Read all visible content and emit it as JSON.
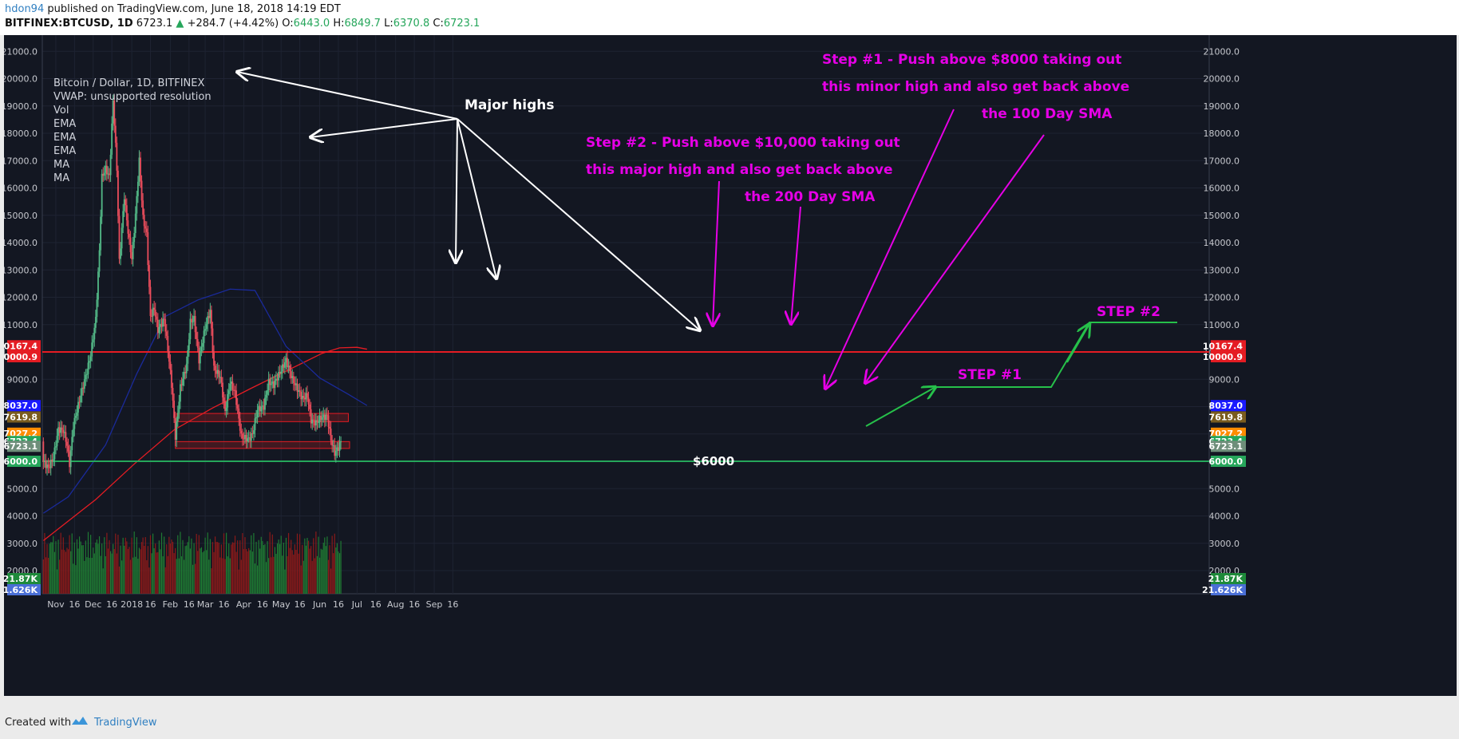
{
  "header": {
    "author": "hdon94",
    "published": "published on TradingView.com, June 18, 2018 14:19 EDT",
    "symbol": "BITFINEX:BTCUSD, 1D",
    "last": "6723.1",
    "change": "+284.7 (+4.42%)",
    "o_label": "O:",
    "o": "6443.0",
    "h_label": "H:",
    "h": "6849.7",
    "l_label": "L:",
    "l": "6370.8",
    "c_label": "C:",
    "c": "6723.1"
  },
  "legend": {
    "title": "Bitcoin / Dollar, 1D, BITFINEX",
    "vwap": "VWAP: unsupported resolution",
    "items": [
      "Vol",
      "EMA",
      "EMA",
      "EMA",
      "MA",
      "MA"
    ]
  },
  "chart_data": {
    "type": "candlestick",
    "title": "Bitcoin / Dollar, 1D, BITFINEX",
    "price_axis": {
      "ticks": [
        "21000.0",
        "20000.0",
        "19000.0",
        "18000.0",
        "17000.0",
        "16000.0",
        "15000.0",
        "14000.0",
        "13000.0",
        "12000.0",
        "11000.0",
        "10000.0",
        "9000.0",
        "8000.0",
        "7000.0",
        "6000.0",
        "5000.0",
        "4000.0",
        "3000.0",
        "2000.0"
      ],
      "ylim": [
        1000,
        21000
      ]
    },
    "time_axis": {
      "ticks": [
        "Nov",
        "16",
        "Dec",
        "16",
        "2018",
        "16",
        "Feb",
        "16",
        "Mar",
        "16",
        "Apr",
        "16",
        "May",
        "16",
        "Jun",
        "16",
        "Jul",
        "16",
        "Aug",
        "16",
        "Sep",
        "16"
      ]
    },
    "price_labels": [
      {
        "text": "10167.4",
        "color": "#e51c23"
      },
      {
        "text": "10000.9",
        "color": "#e51c23"
      },
      {
        "text": "8037.0",
        "color": "#1a1aff"
      },
      {
        "text": "7619.8",
        "color": "#7a5c1e"
      },
      {
        "text": "7027.2",
        "color": "#ff8c00"
      },
      {
        "text": "6723.4",
        "color": "#26a65b"
      },
      {
        "text": "6723.1",
        "color": "#6e8e7a"
      },
      {
        "text": "6000.0",
        "color": "#26a65b"
      },
      {
        "text": "21.87K",
        "color": "#1e8a3a"
      },
      {
        "text": "21.626K",
        "color": "#4a6fd6"
      }
    ],
    "horizontal_lines": [
      {
        "price": 10000.9,
        "color": "#e51c23"
      },
      {
        "price": 6000.0,
        "color": "#26a65b"
      }
    ],
    "zones": [
      {
        "from_date": "2018-02-06",
        "to_date": "2018-06-24",
        "low": 7450,
        "high": 7750
      },
      {
        "from_date": "2018-02-05",
        "to_date": "2018-06-25",
        "low": 6470,
        "high": 6720
      }
    ],
    "close_series": [
      {
        "date": "2017-10-22",
        "close": 5980
      },
      {
        "date": "2017-10-26",
        "close": 5760
      },
      {
        "date": "2017-10-30",
        "close": 6130
      },
      {
        "date": "2017-11-03",
        "close": 7170
      },
      {
        "date": "2017-11-07",
        "close": 7130
      },
      {
        "date": "2017-11-10",
        "close": 6600
      },
      {
        "date": "2017-11-12",
        "close": 5900
      },
      {
        "date": "2017-11-15",
        "close": 7300
      },
      {
        "date": "2017-11-20",
        "close": 8240
      },
      {
        "date": "2017-11-26",
        "close": 9300
      },
      {
        "date": "2017-11-29",
        "close": 9900
      },
      {
        "date": "2017-12-03",
        "close": 11200
      },
      {
        "date": "2017-12-06",
        "close": 13700
      },
      {
        "date": "2017-12-08",
        "close": 16400
      },
      {
        "date": "2017-12-11",
        "close": 16700
      },
      {
        "date": "2017-12-14",
        "close": 16400
      },
      {
        "date": "2017-12-17",
        "close": 19200
      },
      {
        "date": "2017-12-20",
        "close": 16700
      },
      {
        "date": "2017-12-22",
        "close": 13300
      },
      {
        "date": "2017-12-26",
        "close": 15700
      },
      {
        "date": "2017-12-29",
        "close": 14400
      },
      {
        "date": "2018-01-01",
        "close": 13400
      },
      {
        "date": "2018-01-04",
        "close": 15000
      },
      {
        "date": "2018-01-07",
        "close": 17000
      },
      {
        "date": "2018-01-10",
        "close": 14900
      },
      {
        "date": "2018-01-13",
        "close": 14300
      },
      {
        "date": "2018-01-16",
        "close": 11300
      },
      {
        "date": "2018-01-19",
        "close": 11600
      },
      {
        "date": "2018-01-22",
        "close": 10800
      },
      {
        "date": "2018-01-27",
        "close": 11200
      },
      {
        "date": "2018-01-30",
        "close": 10100
      },
      {
        "date": "2018-02-02",
        "close": 8800
      },
      {
        "date": "2018-02-05",
        "close": 6900
      },
      {
        "date": "2018-02-09",
        "close": 8700
      },
      {
        "date": "2018-02-14",
        "close": 9500
      },
      {
        "date": "2018-02-17",
        "close": 11100
      },
      {
        "date": "2018-02-20",
        "close": 11200
      },
      {
        "date": "2018-02-24",
        "close": 9700
      },
      {
        "date": "2018-03-01",
        "close": 10900
      },
      {
        "date": "2018-03-05",
        "close": 11500
      },
      {
        "date": "2018-03-08",
        "close": 9400
      },
      {
        "date": "2018-03-13",
        "close": 9100
      },
      {
        "date": "2018-03-17",
        "close": 7800
      },
      {
        "date": "2018-03-21",
        "close": 8900
      },
      {
        "date": "2018-03-25",
        "close": 8500
      },
      {
        "date": "2018-03-30",
        "close": 6900
      },
      {
        "date": "2018-04-05",
        "close": 6800
      },
      {
        "date": "2018-04-08",
        "close": 7000
      },
      {
        "date": "2018-04-12",
        "close": 7900
      },
      {
        "date": "2018-04-17",
        "close": 8000
      },
      {
        "date": "2018-04-21",
        "close": 8900
      },
      {
        "date": "2018-04-25",
        "close": 8800
      },
      {
        "date": "2018-04-30",
        "close": 9250
      },
      {
        "date": "2018-05-05",
        "close": 9700
      },
      {
        "date": "2018-05-10",
        "close": 9000
      },
      {
        "date": "2018-05-14",
        "close": 8650
      },
      {
        "date": "2018-05-18",
        "close": 8300
      },
      {
        "date": "2018-05-22",
        "close": 8400
      },
      {
        "date": "2018-05-25",
        "close": 7500
      },
      {
        "date": "2018-05-29",
        "close": 7400
      },
      {
        "date": "2018-06-02",
        "close": 7600
      },
      {
        "date": "2018-06-07",
        "close": 7650
      },
      {
        "date": "2018-06-10",
        "close": 6800
      },
      {
        "date": "2018-06-13",
        "close": 6300
      },
      {
        "date": "2018-06-16",
        "close": 6500
      },
      {
        "date": "2018-06-18",
        "close": 6723
      }
    ],
    "moving_averages": [
      {
        "name": "MA 200 (200 Day SMA)",
        "color": "#e51c23",
        "values": [
          [
            0,
            3100
          ],
          [
            14,
            3600
          ],
          [
            42,
            4600
          ],
          [
            73,
            5900
          ],
          [
            105,
            7150
          ],
          [
            136,
            7950
          ],
          [
            166,
            8650
          ],
          [
            195,
            9300
          ],
          [
            224,
            9950
          ],
          [
            238,
            10150
          ],
          [
            252,
            10170
          ],
          [
            260,
            10100
          ]
        ]
      },
      {
        "name": "MA 100 (100 Day SMA)",
        "color": "#1a2a9a",
        "values": [
          [
            0,
            4100
          ],
          [
            20,
            4700
          ],
          [
            50,
            6600
          ],
          [
            75,
            9200
          ],
          [
            98,
            11300
          ],
          [
            124,
            11900
          ],
          [
            150,
            12300
          ],
          [
            170,
            12250
          ],
          [
            195,
            10200
          ],
          [
            222,
            9050
          ],
          [
            245,
            8450
          ],
          [
            260,
            8040
          ]
        ]
      }
    ],
    "volume": {
      "label_value": "21.87K",
      "avg_label": "21.626K"
    },
    "annotations": [
      {
        "text": "Major highs",
        "color": "#ffffff"
      },
      {
        "text": "Step #1 - Push above $8000 taking out",
        "color": "#e600e6"
      },
      {
        "text": "this minor high and also get back above",
        "color": "#e600e6"
      },
      {
        "text": "the 100 Day SMA",
        "color": "#e600e6"
      },
      {
        "text": "Step #2 - Push above $10,000 taking out",
        "color": "#e600e6"
      },
      {
        "text": "this major high and also get back above",
        "color": "#e600e6"
      },
      {
        "text": "the 200 Day SMA",
        "color": "#e600e6"
      },
      {
        "text": "STEP #1",
        "color": "#e600e6"
      },
      {
        "text": "STEP #2",
        "color": "#e600e6"
      },
      {
        "text": "$6000",
        "color": "#ffffff"
      }
    ]
  },
  "footer": {
    "created": "Created with",
    "brand": "TradingView",
    "logo_icon": "tradingview-cloud-icon"
  }
}
